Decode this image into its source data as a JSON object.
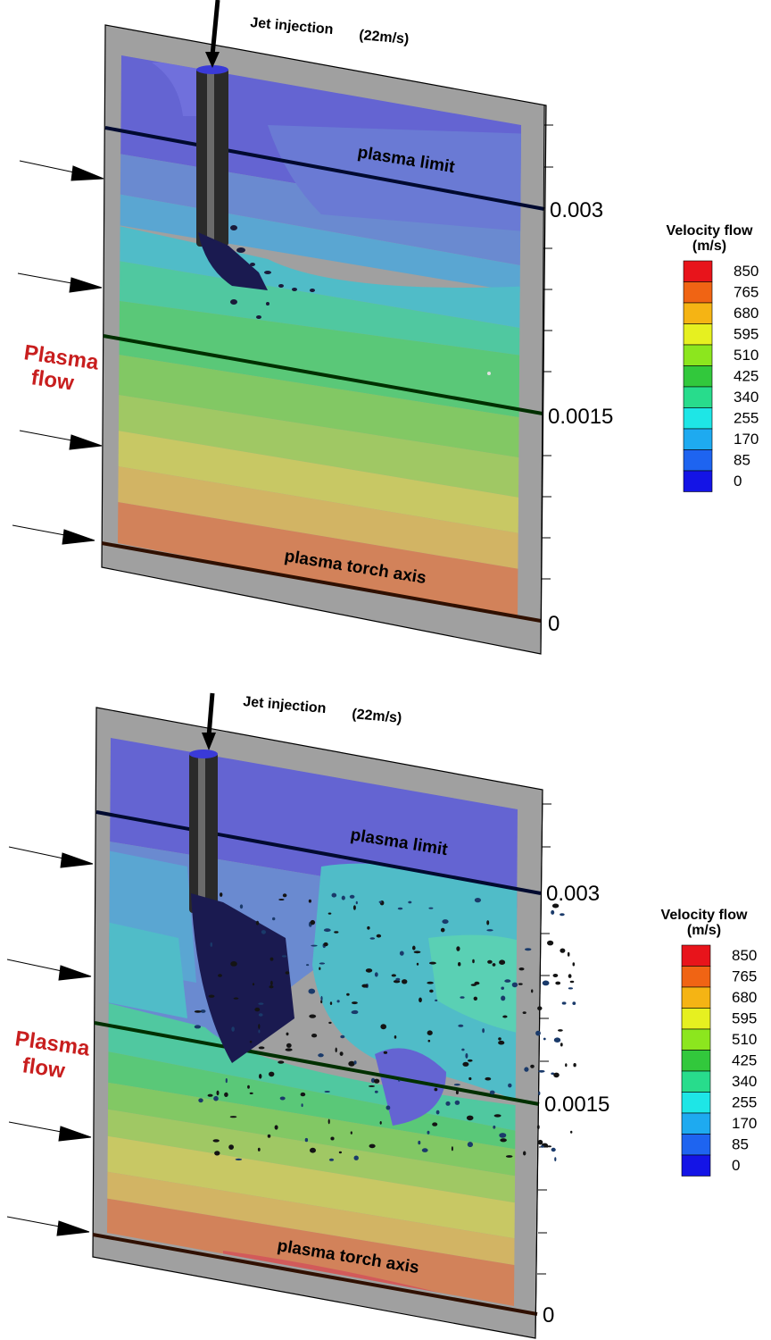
{
  "panels": [
    {
      "jet_label": "Jet injection",
      "jet_speed": "(22m/s)",
      "plasma_limit_label": "plasma limit",
      "torch_axis_label": "plasma torch axis",
      "plasma_flow_line1": "Plasma",
      "plasma_flow_line2": "flow",
      "scale_ticks": [
        "0.003",
        "0.0015",
        "0"
      ],
      "legend_title_line1": "Velocity flow",
      "legend_title_line2": "(m/s)",
      "legend_levels": [
        "850",
        "765",
        "680",
        "595",
        "510",
        "425",
        "340",
        "255",
        "170",
        "85",
        "0"
      ],
      "droplet_spray": "narrow"
    },
    {
      "jet_label": "Jet injection",
      "jet_speed": "(22m/s)",
      "plasma_limit_label": "plasma limit",
      "torch_axis_label": "plasma torch axis",
      "plasma_flow_line1": "Plasma",
      "plasma_flow_line2": "flow",
      "scale_ticks": [
        "0.003",
        "0.0015",
        "0"
      ],
      "legend_title_line1": "Velocity flow",
      "legend_title_line2": "(m/s)",
      "legend_levels": [
        "850",
        "765",
        "680",
        "595",
        "510",
        "425",
        "340",
        "255",
        "170",
        "85",
        "0"
      ],
      "droplet_spray": "wide"
    }
  ],
  "colors": {
    "legend_swatches": [
      "#e8141b",
      "#f06414",
      "#f5b414",
      "#e6f020",
      "#8ce61e",
      "#32c83c",
      "#28dc8c",
      "#1ee6e6",
      "#1eaaf0",
      "#1e64f0",
      "#1414e6"
    ],
    "plasma_label": "#c81e1e",
    "frame_gray": "#a0a0a0"
  }
}
